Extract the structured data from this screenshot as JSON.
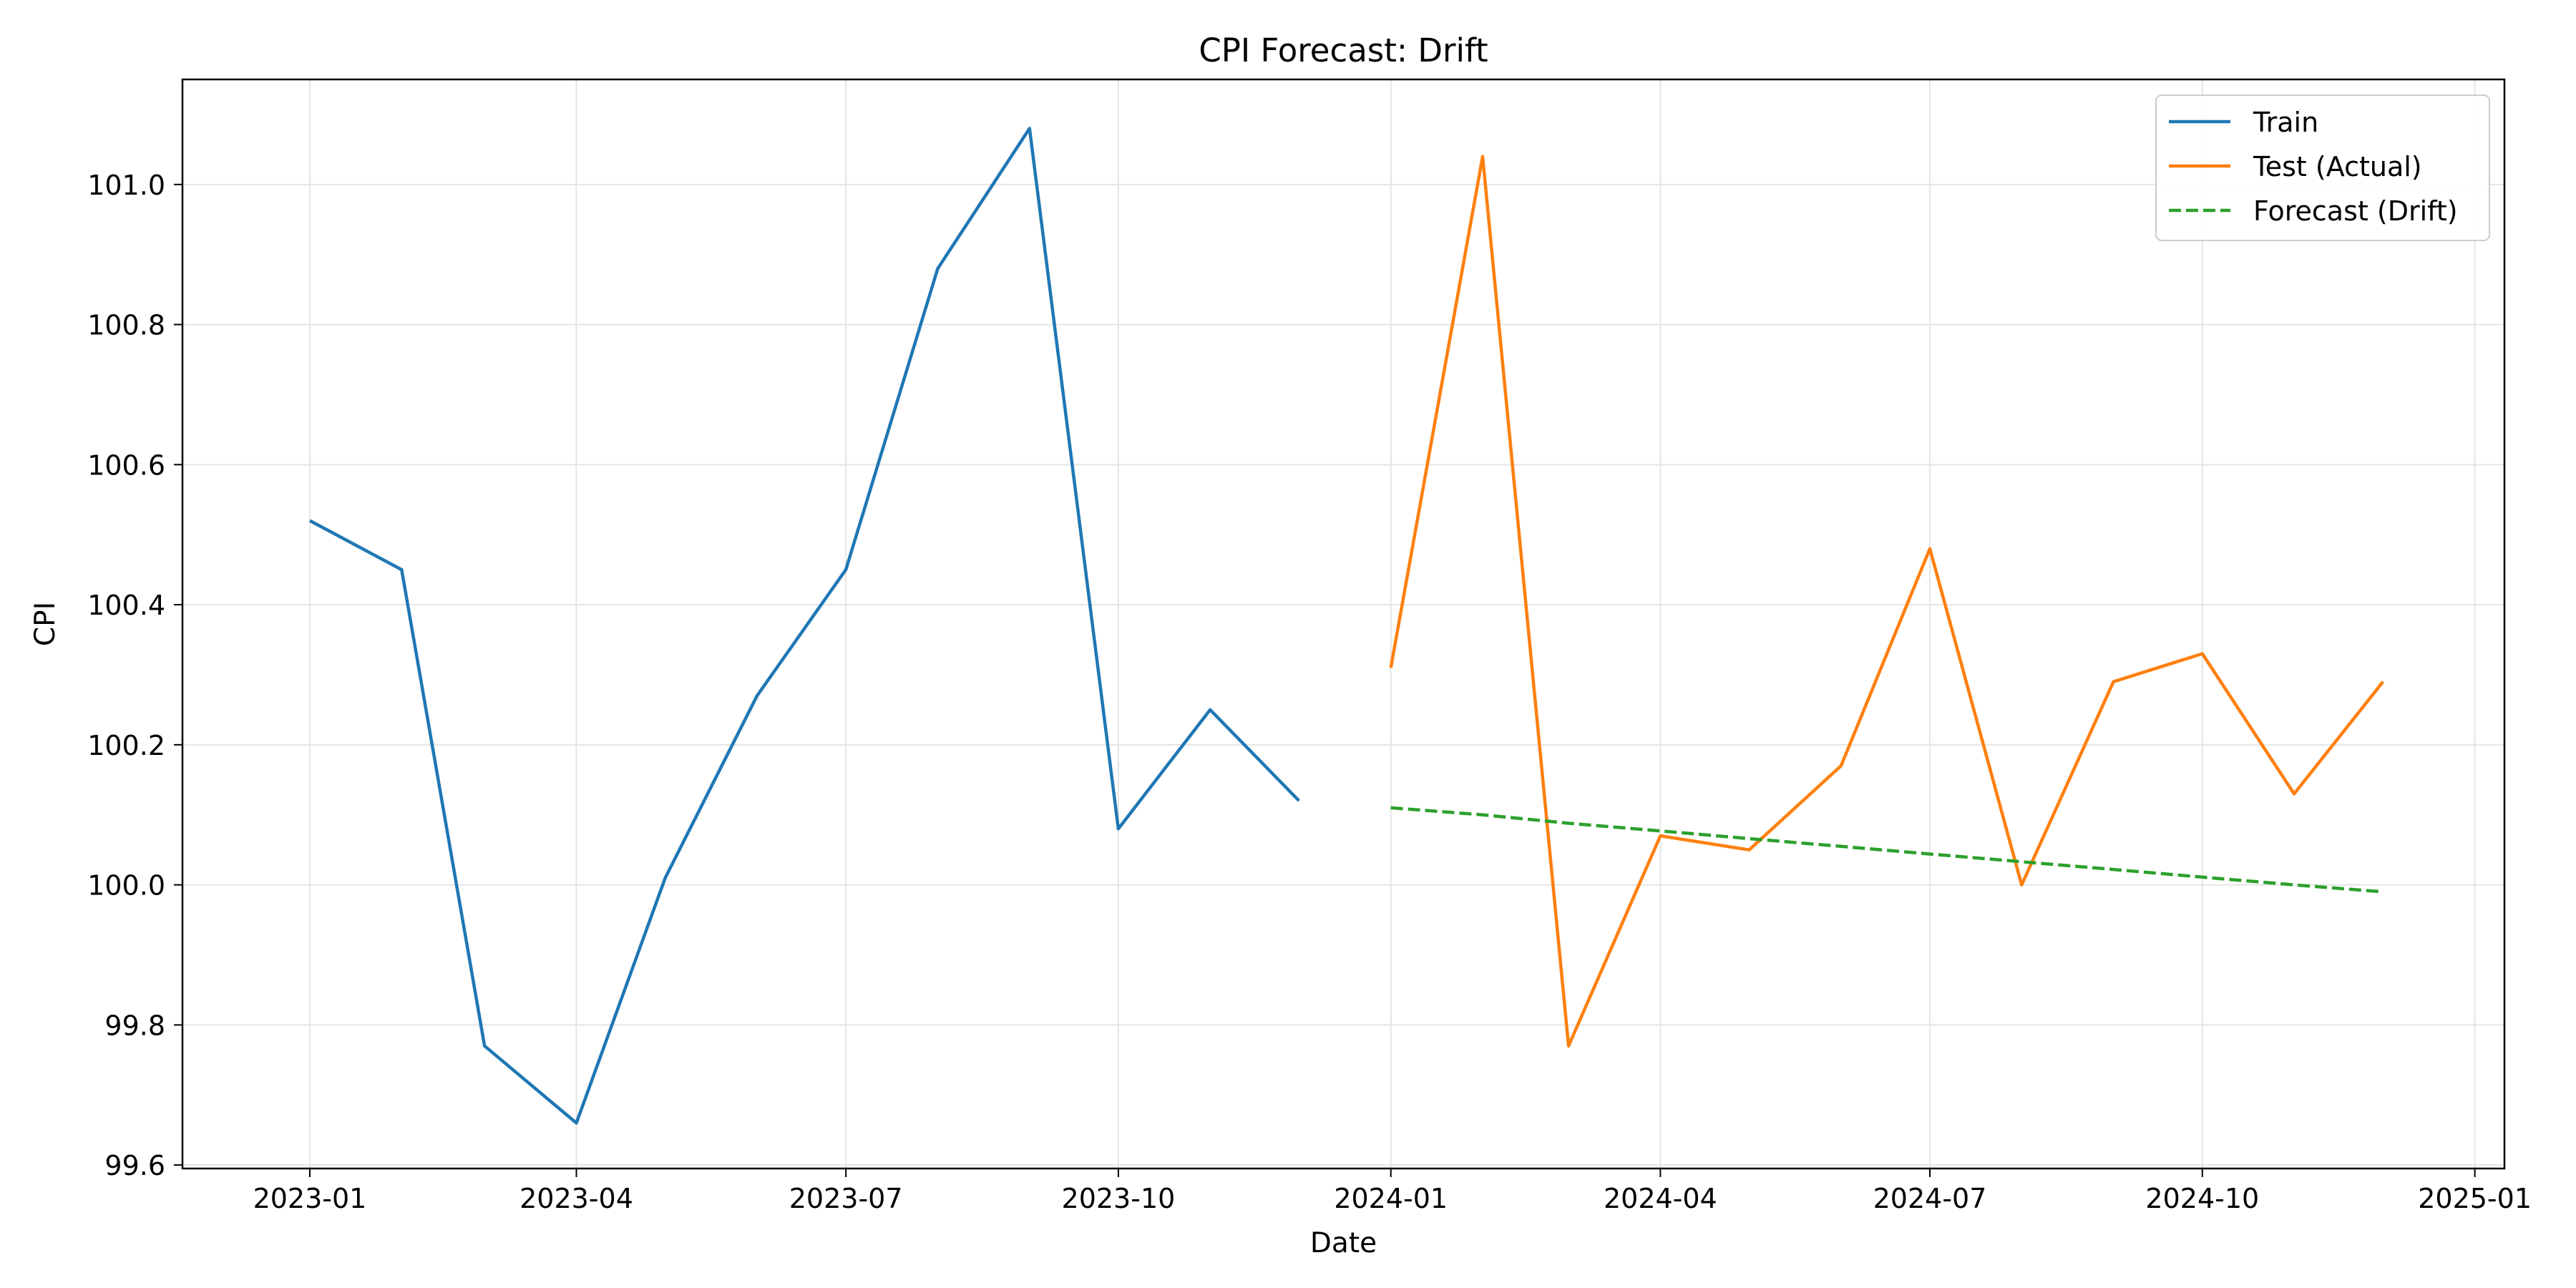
{
  "chart_data": {
    "type": "line",
    "title": "CPI Forecast: Drift",
    "xlabel": "Date",
    "ylabel": "CPI",
    "grid": true,
    "legend_position": "top-right",
    "xlim": [
      "2022-11-19",
      "2025-01-11"
    ],
    "ylim": [
      99.595,
      101.15
    ],
    "x_ticks": [
      "2023-01",
      "2023-04",
      "2023-07",
      "2023-10",
      "2024-01",
      "2024-04",
      "2024-07",
      "2024-10",
      "2025-01"
    ],
    "y_ticks": [
      "99.6",
      "99.8",
      "100.0",
      "100.2",
      "100.4",
      "100.6",
      "100.8",
      "101.0"
    ],
    "series": [
      {
        "name": "Train",
        "color": "#1f77b4",
        "dash": "solid",
        "x": [
          "2023-01-01",
          "2023-02-01",
          "2023-03-01",
          "2023-04-01",
          "2023-05-01",
          "2023-06-01",
          "2023-07-01",
          "2023-08-01",
          "2023-09-01",
          "2023-10-01",
          "2023-11-01",
          "2023-12-01"
        ],
        "y": [
          100.52,
          100.45,
          99.77,
          99.66,
          100.01,
          100.27,
          100.45,
          100.88,
          101.08,
          100.08,
          100.25,
          100.12
        ]
      },
      {
        "name": "Test (Actual)",
        "color": "#ff7f0e",
        "dash": "solid",
        "x": [
          "2024-01-01",
          "2024-02-01",
          "2024-03-01",
          "2024-04-01",
          "2024-05-01",
          "2024-06-01",
          "2024-07-01",
          "2024-08-01",
          "2024-09-01",
          "2024-10-01",
          "2024-11-01",
          "2024-12-01"
        ],
        "y": [
          100.31,
          101.04,
          99.77,
          100.07,
          100.05,
          100.17,
          100.48,
          100.0,
          100.29,
          100.33,
          100.13,
          100.29
        ]
      },
      {
        "name": "Forecast (Drift)",
        "color": "#2ca02c",
        "dash": "dashed",
        "x": [
          "2024-01-01",
          "2024-02-01",
          "2024-03-01",
          "2024-04-01",
          "2024-05-01",
          "2024-06-01",
          "2024-07-01",
          "2024-08-01",
          "2024-09-01",
          "2024-10-01",
          "2024-11-01",
          "2024-12-01"
        ],
        "y": [
          100.11,
          100.1,
          100.088,
          100.077,
          100.066,
          100.055,
          100.044,
          100.033,
          100.022,
          100.011,
          100.0,
          99.99
        ]
      }
    ]
  }
}
